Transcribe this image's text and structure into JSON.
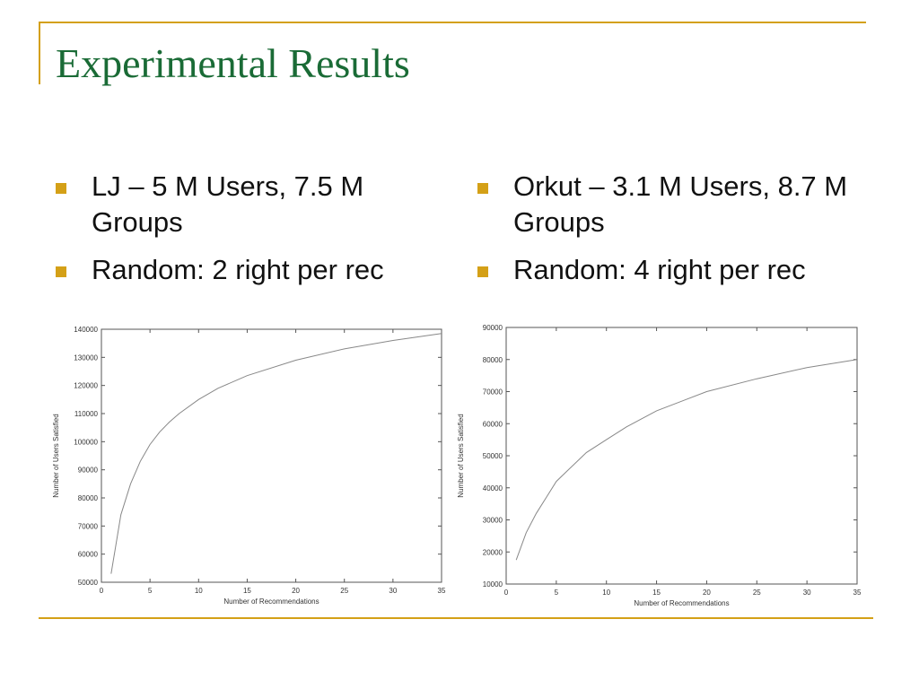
{
  "slide": {
    "title": "Experimental Results",
    "accent_color": "#d4a017",
    "title_color": "#1a6b36"
  },
  "left_column": {
    "bullets": [
      "LJ – 5 M Users, 7.5 M Groups",
      "Random: 2 right per rec"
    ]
  },
  "right_column": {
    "bullets": [
      "Orkut – 3.1 M Users, 8.7 M Groups",
      "Random: 4 right per rec"
    ]
  },
  "chart_data": [
    {
      "type": "line",
      "xlabel": "Number of Recommendations",
      "ylabel": "Number of Users Satisfied",
      "xlim": [
        0,
        35
      ],
      "ylim": [
        50000,
        140000
      ],
      "xticks": [
        0,
        5,
        10,
        15,
        20,
        25,
        30,
        35
      ],
      "yticks": [
        50000,
        60000,
        70000,
        80000,
        90000,
        100000,
        110000,
        120000,
        130000,
        140000
      ],
      "grid": false,
      "series": [
        {
          "x": [
            1,
            2,
            3,
            4,
            5,
            6,
            7,
            8,
            10,
            12,
            15,
            20,
            25,
            30,
            35
          ],
          "values": [
            53000,
            74000,
            85000,
            93000,
            99000,
            103500,
            107000,
            110000,
            115000,
            119000,
            123500,
            129000,
            133000,
            136000,
            138500
          ]
        }
      ]
    },
    {
      "type": "line",
      "xlabel": "Number of Recommendations",
      "ylabel": "Number of Users Satisfied",
      "xlim": [
        0,
        35
      ],
      "ylim": [
        10000,
        90000
      ],
      "xticks": [
        0,
        5,
        10,
        15,
        20,
        25,
        30,
        35
      ],
      "yticks": [
        10000,
        20000,
        30000,
        40000,
        50000,
        60000,
        70000,
        80000,
        90000
      ],
      "grid": false,
      "series": [
        {
          "x": [
            1,
            2,
            3,
            4,
            5,
            6,
            8,
            10,
            12,
            15,
            20,
            25,
            30,
            35
          ],
          "values": [
            17500,
            26000,
            32000,
            37000,
            42000,
            45000,
            51000,
            55000,
            59000,
            64000,
            70000,
            74000,
            77500,
            80000
          ]
        }
      ]
    }
  ]
}
